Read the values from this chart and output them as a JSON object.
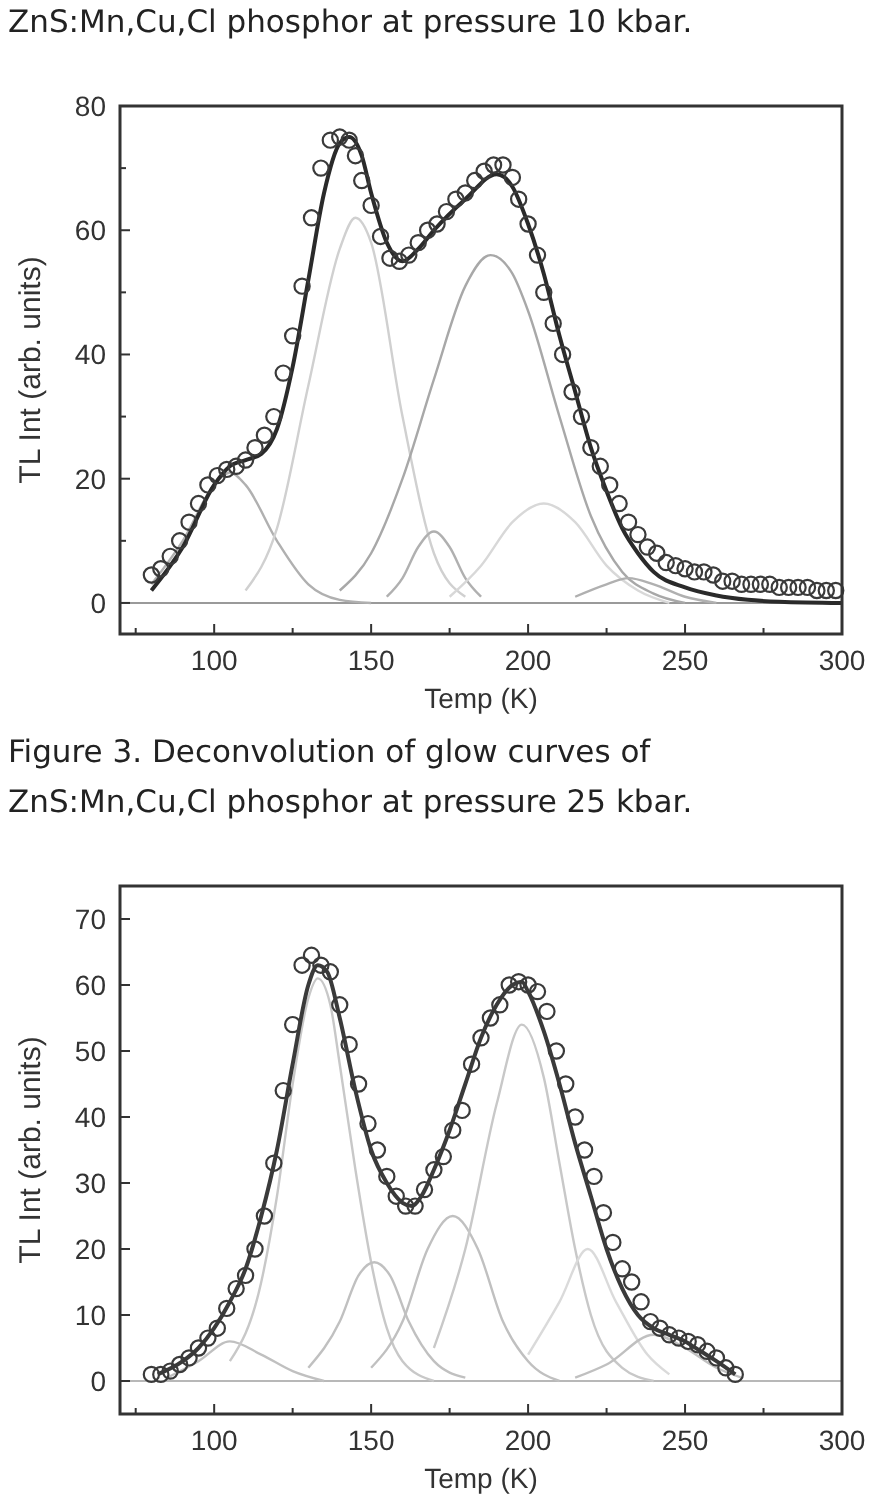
{
  "chart_data": [
    {
      "type": "line",
      "title": "ZnS:Mn,Cu,Cl phosphor at pressure 10 kbar.",
      "xlabel": "Temp (K)",
      "ylabel": "TL Int (arb. units)",
      "xlim": [
        70,
        300
      ],
      "ylim": [
        -5,
        80
      ],
      "xticks": [
        {
          "value": 75,
          "label": null
        },
        100,
        {
          "value": 125,
          "label": null
        },
        150,
        {
          "value": 175,
          "label": null
        },
        200,
        {
          "value": 225,
          "label": null
        },
        250,
        {
          "value": 275,
          "label": null
        },
        300
      ],
      "yticks": [
        0,
        {
          "value": 10,
          "label": null
        },
        20,
        {
          "value": 30,
          "label": null
        },
        40,
        {
          "value": 50,
          "label": null
        },
        60,
        {
          "value": 70,
          "label": null
        },
        80
      ],
      "ref_lines": [
        {
          "axis": "y",
          "value": 0,
          "color": "#9a9a9a"
        }
      ],
      "series": [
        {
          "color": "#b0b0b0",
          "x": [
            80,
            90,
            100,
            105,
            110,
            120,
            130,
            140,
            150
          ],
          "values": [
            3,
            10,
            19,
            21,
            19,
            10,
            3,
            0.5,
            0
          ]
        },
        {
          "color": "#d0d0d0",
          "x": [
            110,
            120,
            130,
            140,
            145,
            150,
            160,
            170,
            180
          ],
          "values": [
            2,
            12,
            35,
            57,
            62,
            58,
            30,
            8,
            1
          ]
        },
        {
          "color": "#b0b0b0",
          "x": [
            155,
            160,
            165,
            170,
            175,
            180,
            185
          ],
          "values": [
            1,
            4,
            9,
            11.5,
            9,
            4,
            1
          ]
        },
        {
          "color": "#a8a8a8",
          "x": [
            140,
            150,
            160,
            170,
            180,
            188,
            195,
            200,
            210,
            220,
            230,
            240,
            250
          ],
          "values": [
            2,
            8,
            20,
            36,
            51,
            56,
            53,
            47,
            30,
            14,
            5,
            1.5,
            0
          ]
        },
        {
          "color": "#d8d8d8",
          "x": [
            175,
            185,
            195,
            205,
            215,
            225,
            235,
            245
          ],
          "values": [
            1,
            6,
            13,
            16,
            13,
            6,
            2,
            0
          ]
        },
        {
          "color": "#b0b0b0",
          "x": [
            215,
            225,
            232,
            240,
            250,
            260
          ],
          "values": [
            1,
            3,
            4,
            3,
            1,
            0
          ]
        },
        {
          "color": "#2a2a2a",
          "x": [
            80,
            90,
            100,
            105,
            110,
            115,
            120,
            125,
            130,
            135,
            140,
            143,
            147,
            150,
            155,
            160,
            165,
            170,
            180,
            190,
            195,
            200,
            205,
            210,
            215,
            220,
            225,
            230,
            235,
            240,
            250,
            260,
            270,
            280,
            300
          ],
          "values": [
            2,
            9,
            19,
            22,
            23,
            24,
            28,
            38,
            52,
            66,
            74,
            75,
            72,
            66,
            58,
            55,
            57,
            60,
            65,
            69,
            67,
            61,
            53,
            43,
            34,
            25,
            18,
            12,
            8,
            5,
            2.5,
            1.2,
            0.5,
            0.2,
            0
          ]
        },
        {
          "type": "scatter",
          "marker": "circle",
          "color": "#3a3a3a",
          "x": [
            80,
            83,
            86,
            89,
            92,
            95,
            98,
            101,
            104,
            107,
            110,
            113,
            116,
            119,
            122,
            125,
            128,
            131,
            134,
            137,
            140,
            143,
            145,
            147,
            150,
            153,
            156,
            159,
            162,
            165,
            168,
            171,
            174,
            177,
            180,
            183,
            186,
            189,
            192,
            195,
            197,
            200,
            203,
            205,
            208,
            211,
            214,
            217,
            220,
            223,
            226,
            229,
            232,
            235,
            238,
            241,
            244,
            247,
            250,
            253,
            256,
            259,
            262,
            265,
            268,
            271,
            274,
            277,
            280,
            283,
            286,
            289,
            292,
            295,
            298
          ],
          "values": [
            4.5,
            5.5,
            7.5,
            10,
            13,
            16,
            19,
            20.5,
            21.5,
            22,
            23,
            25,
            27,
            30,
            37,
            43,
            51,
            62,
            70,
            74.5,
            75,
            74.5,
            72,
            68,
            64,
            59,
            55.5,
            55,
            56,
            58,
            60,
            61,
            63,
            65,
            66,
            68,
            69.5,
            70.5,
            70.5,
            68.5,
            65,
            61,
            56,
            50,
            45,
            40,
            34,
            30,
            25,
            22,
            19,
            16,
            13,
            11,
            9,
            8,
            6.5,
            6,
            5.5,
            5,
            5,
            4.5,
            3.5,
            3.5,
            3,
            3,
            3,
            3,
            2.5,
            2.5,
            2.5,
            2.5,
            2,
            2,
            2
          ]
        }
      ]
    },
    {
      "type": "line",
      "title": "Figure 3. Deconvolution of glow curves of ZnS:Mn,Cu,Cl phosphor at pressure 25 kbar.",
      "xlabel": "Temp (K)",
      "ylabel": "TL Int (arb. units)",
      "xlim": [
        70,
        300
      ],
      "ylim": [
        -5,
        75
      ],
      "xticks": [
        {
          "value": 75,
          "label": null
        },
        100,
        {
          "value": 125,
          "label": null
        },
        150,
        {
          "value": 175,
          "label": null
        },
        200,
        {
          "value": 225,
          "label": null
        },
        250,
        {
          "value": 275,
          "label": null
        },
        300
      ],
      "yticks": [
        0,
        10,
        20,
        30,
        40,
        50,
        60,
        70
      ],
      "ref_lines": [
        {
          "axis": "y",
          "value": 0,
          "color": "#b8b8b8"
        }
      ],
      "series": [
        {
          "color": "#c0c0c0",
          "x": [
            85,
            95,
            105,
            115,
            125,
            135
          ],
          "values": [
            0.5,
            3,
            6,
            4,
            1.5,
            0
          ]
        },
        {
          "color": "#c8c8c8",
          "x": [
            105,
            115,
            120,
            125,
            130,
            133,
            137,
            140,
            145,
            150,
            155,
            160,
            170
          ],
          "values": [
            3,
            15,
            28,
            45,
            58,
            61,
            57,
            48,
            32,
            18,
            8,
            3,
            0
          ]
        },
        {
          "color": "#c0c0c0",
          "x": [
            130,
            140,
            146,
            151,
            156,
            162,
            170,
            180
          ],
          "values": [
            2,
            9,
            16,
            18,
            16,
            9,
            3,
            0.5
          ]
        },
        {
          "color": "#c0c0c0",
          "x": [
            150,
            160,
            168,
            176,
            184,
            192,
            200,
            210
          ],
          "values": [
            2,
            9,
            20,
            25,
            20,
            9,
            3,
            0
          ]
        },
        {
          "color": "#c8c8c8",
          "x": [
            170,
            180,
            190,
            198,
            205,
            210,
            215,
            220,
            230,
            240
          ],
          "values": [
            5,
            20,
            42,
            54,
            46,
            33,
            20,
            10,
            2,
            0
          ]
        },
        {
          "color": "#dadada",
          "x": [
            200,
            210,
            219,
            228,
            238,
            245
          ],
          "values": [
            4,
            12,
            20,
            12,
            4,
            1
          ]
        },
        {
          "color": "#c0c0c0",
          "x": [
            215,
            225,
            240,
            250,
            260,
            268
          ],
          "values": [
            0.5,
            2.5,
            7,
            5,
            2,
            0.5
          ]
        },
        {
          "color": "#3a3a3a",
          "x": [
            82,
            90,
            95,
            100,
            105,
            110,
            115,
            120,
            125,
            130,
            133,
            136,
            140,
            145,
            150,
            155,
            160,
            163,
            166,
            170,
            175,
            180,
            185,
            190,
            195,
            198,
            200,
            205,
            210,
            215,
            220,
            225,
            230,
            235,
            240,
            245,
            250,
            255,
            260,
            266
          ],
          "values": [
            1,
            3,
            5,
            8,
            12,
            17,
            25,
            35,
            48,
            60,
            63,
            62,
            55,
            44,
            35,
            30,
            27,
            26.5,
            28,
            32,
            38,
            45,
            52,
            57,
            60,
            60.5,
            59,
            53,
            45,
            36,
            28,
            20,
            14,
            10,
            8,
            7,
            6,
            4.5,
            3,
            1
          ]
        },
        {
          "type": "scatter",
          "marker": "circle",
          "color": "#3a3a3a",
          "x": [
            80,
            83,
            86,
            89,
            92,
            95,
            98,
            101,
            104,
            107,
            110,
            113,
            116,
            119,
            122,
            125,
            128,
            131,
            134,
            137,
            140,
            143,
            146,
            149,
            152,
            155,
            158,
            161,
            164,
            167,
            170,
            173,
            176,
            179,
            182,
            185,
            188,
            191,
            194,
            197,
            200,
            203,
            206,
            209,
            212,
            215,
            218,
            221,
            224,
            227,
            230,
            233,
            236,
            239,
            242,
            245,
            248,
            251,
            254,
            257,
            260,
            263,
            266
          ],
          "values": [
            1,
            1,
            1.5,
            2.5,
            3.5,
            5,
            6.5,
            8,
            11,
            14,
            16,
            20,
            25,
            33,
            44,
            54,
            63,
            64.5,
            63,
            62,
            57,
            51,
            45,
            39,
            35,
            31,
            28,
            26.5,
            26.5,
            29,
            32,
            34,
            38,
            41,
            48,
            52,
            55,
            57,
            60,
            60.5,
            60,
            59,
            56,
            50,
            45,
            40,
            35,
            31,
            25.5,
            21,
            17,
            15,
            12,
            9,
            8,
            7,
            6.5,
            6,
            5.5,
            4.5,
            3.5,
            2,
            1
          ]
        }
      ]
    }
  ]
}
